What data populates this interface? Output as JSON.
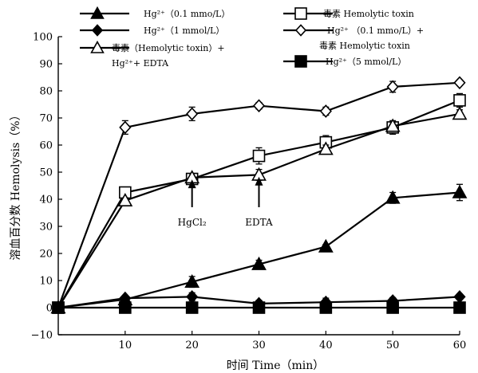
{
  "chart_data": {
    "type": "line",
    "xlabel": "时间 Time（min）",
    "ylabel": "溶血百分数 Hemolysis（%）",
    "xlim": [
      0,
      60
    ],
    "ylim": [
      -10,
      100
    ],
    "x_ticks": [
      10,
      20,
      30,
      40,
      50,
      60
    ],
    "y_ticks": [
      -10,
      0,
      10,
      20,
      30,
      40,
      50,
      60,
      70,
      80,
      90,
      100
    ],
    "grid": false,
    "legend_position": "top",
    "legend": [
      {
        "marker": "triangle-filled",
        "lines": [
          "Hg²⁺（0.1 mmo/L）"
        ]
      },
      {
        "marker": "square-open",
        "lines": [
          "毒素 Hemolytic toxin"
        ]
      },
      {
        "marker": "diamond-filled",
        "lines": [
          "Hg²⁺（1 mmol/L）"
        ]
      },
      {
        "marker": "diamond-open",
        "lines": [
          "Hg²⁺ （0.1 mmo/L）+",
          "毒素 Hemolytic toxin"
        ]
      },
      {
        "marker": "triangle-open",
        "lines": [
          "毒素（Hemolytic toxin）+",
          "Hg²⁺+ EDTA"
        ]
      },
      {
        "marker": "square-filled",
        "lines": [
          "Hg²⁺（5 mmol/L）"
        ]
      }
    ],
    "series": [
      {
        "marker": "diamond-open",
        "x": [
          0,
          10,
          20,
          30,
          40,
          50,
          60
        ],
        "y": [
          0,
          66.5,
          71.5,
          74.5,
          72.5,
          81.5,
          83
        ],
        "err": [
          0,
          2.5,
          2.5,
          1.2,
          1.5,
          2,
          1
        ]
      },
      {
        "marker": "square-open",
        "x": [
          0,
          10,
          20,
          30,
          40,
          50,
          60
        ],
        "y": [
          0,
          42.5,
          47.5,
          56,
          61,
          66.5,
          76.5
        ],
        "err": [
          0,
          1.5,
          1.5,
          3,
          2.5,
          2.5,
          2.5
        ]
      },
      {
        "marker": "triangle-open",
        "x": [
          0,
          10,
          20,
          30,
          40,
          50,
          60
        ],
        "y": [
          0,
          39.5,
          48,
          49,
          58.5,
          67,
          71.5
        ],
        "err": [
          0,
          1,
          1.5,
          2,
          1.5,
          1.5,
          1.5
        ]
      },
      {
        "marker": "triangle-filled",
        "x": [
          0,
          10,
          20,
          30,
          40,
          50,
          60
        ],
        "y": [
          0,
          3,
          9.5,
          16,
          22.5,
          40.5,
          42.5
        ],
        "err": [
          0,
          0.8,
          2,
          1.5,
          0.8,
          2,
          3
        ]
      },
      {
        "marker": "diamond-filled",
        "x": [
          0,
          10,
          20,
          30,
          40,
          50,
          60
        ],
        "y": [
          0,
          3.5,
          4,
          1.5,
          2,
          2.5,
          4
        ],
        "err": [
          0,
          0.6,
          1.5,
          1.2,
          1.5,
          1.2,
          1
        ]
      },
      {
        "marker": "square-filled",
        "x": [
          0,
          10,
          20,
          30,
          40,
          50,
          60
        ],
        "y": [
          0,
          0,
          0,
          0,
          0,
          0,
          0
        ],
        "err": [
          0,
          0,
          0,
          0,
          0,
          0,
          0
        ]
      }
    ],
    "annotations": [
      {
        "text": "HgCl₂",
        "x": 20,
        "arrow_top_y": 48.5
      },
      {
        "text": "EDTA",
        "x": 30,
        "arrow_top_y": 49.5
      }
    ]
  }
}
